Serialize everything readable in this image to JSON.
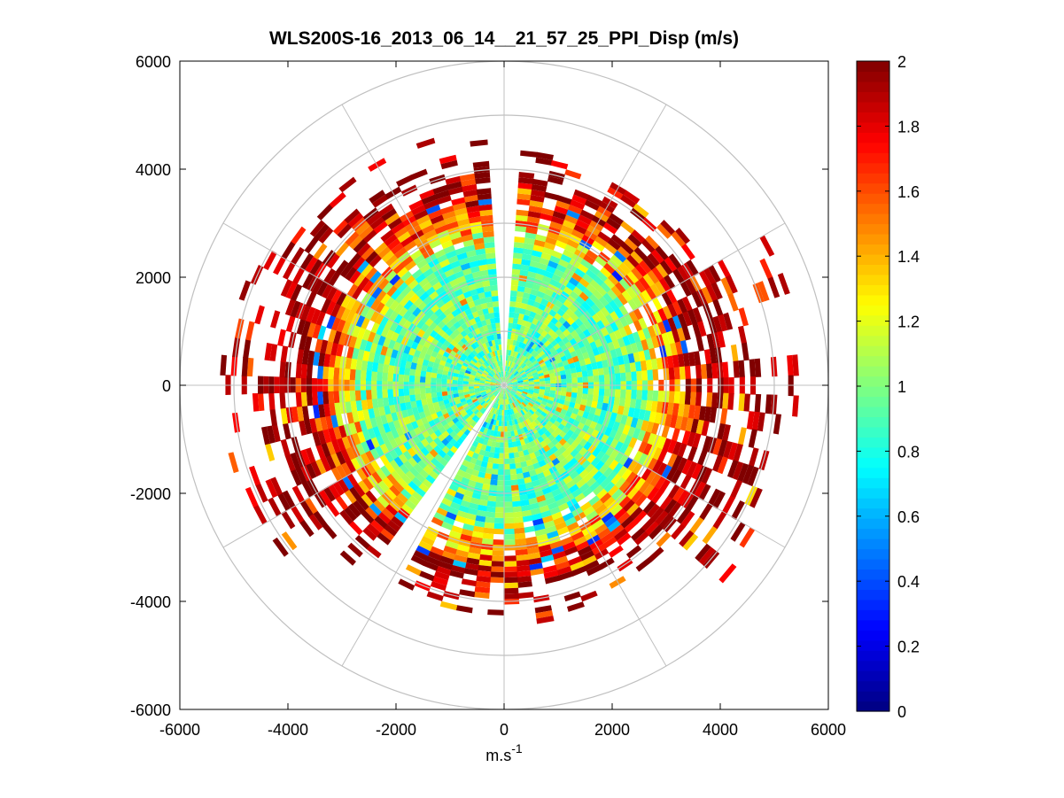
{
  "chart_data": {
    "type": "heatmap",
    "subtype": "polar-ppi",
    "title": "WLS200S-16_2013_06_14__21_57_25_PPI_Disp (m/s)",
    "xlabel": "m.s",
    "xlabel_sup": "-1",
    "ylabel": "",
    "xlim": [
      -6000,
      6000
    ],
    "ylim": [
      -6000,
      6000
    ],
    "xticks": [
      -6000,
      -4000,
      -2000,
      0,
      2000,
      4000,
      6000
    ],
    "yticks": [
      -6000,
      -4000,
      -2000,
      0,
      2000,
      4000,
      6000
    ],
    "xtick_labels": [
      "-6000",
      "-4000",
      "-2000",
      "0",
      "2000",
      "4000",
      "6000"
    ],
    "ytick_labels": [
      "-6000",
      "-4000",
      "-2000",
      "0",
      "2000",
      "4000",
      "6000"
    ],
    "polar_grid_rings": [
      1000,
      2000,
      3000,
      4000,
      5000,
      6000
    ],
    "polar_grid_spoke_angles_deg": [
      0,
      30,
      60,
      90,
      120,
      150,
      180,
      210,
      240,
      270,
      300,
      330
    ],
    "colorbar": {
      "colormap": "jet",
      "range": [
        0,
        2
      ],
      "ticks": [
        0,
        0.2,
        0.4,
        0.6,
        0.8,
        1,
        1.2,
        1.4,
        1.6,
        1.8,
        2
      ],
      "tick_labels": [
        "0",
        "0.2",
        "0.4",
        "0.6",
        "0.8",
        "1",
        "1.2",
        "1.4",
        "1.6",
        "1.8",
        "2"
      ]
    },
    "data_summary": {
      "range_gate_m": 100,
      "azimuth_step_deg": 4,
      "inner_region": {
        "max_range_m": 2500,
        "typical_value": 0.95
      },
      "mid_ring": {
        "range_m": [
          2500,
          3500
        ],
        "typical_value": 1.4
      },
      "outer_region": {
        "range_m": [
          3500,
          5500
        ],
        "typical_value": 2.0,
        "coverage": "sparse"
      },
      "gaps_azimuth_deg": [
        [
          355,
          360
        ],
        [
          0,
          3
        ],
        [
          208,
          215
        ]
      ],
      "max_range_by_sector": [
        {
          "az_deg": [
            0,
            60
          ],
          "max_m": 4400
        },
        {
          "az_deg": [
            60,
            130
          ],
          "max_m": 5500
        },
        {
          "az_deg": [
            130,
            180
          ],
          "max_m": 4400
        },
        {
          "az_deg": [
            180,
            230
          ],
          "max_m": 4300
        },
        {
          "az_deg": [
            230,
            300
          ],
          "max_m": 5200
        },
        {
          "az_deg": [
            300,
            360
          ],
          "max_m": 4700
        }
      ]
    },
    "colors": {
      "grid": "#c0c0c0",
      "axes": "#000000",
      "background": "#ffffff"
    }
  }
}
